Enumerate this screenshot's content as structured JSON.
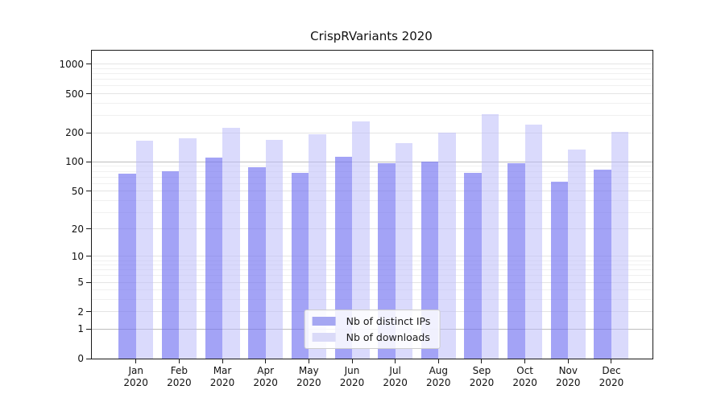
{
  "title": "CrispRVariants 2020",
  "legend": {
    "items": [
      {
        "label": "Nb of distinct IPs",
        "swatch_color": "#a5a7f2"
      },
      {
        "label": "Nb of downloads",
        "swatch_color": "#dadaf8"
      }
    ]
  },
  "chart_data": {
    "type": "bar",
    "title": "CrispRVariants 2020",
    "categories": [
      "Jan",
      "Feb",
      "Mar",
      "Apr",
      "May",
      "Jun",
      "Jul",
      "Aug",
      "Sep",
      "Oct",
      "Nov",
      "Dec"
    ],
    "x_tick_year": "2020",
    "series": [
      {
        "name": "Nb of distinct IPs",
        "color": "rgba(116,116,242,0.66)",
        "values": [
          76,
          81,
          112,
          88,
          77,
          113,
          97,
          100,
          77,
          98,
          62,
          83
        ]
      },
      {
        "name": "Nb of downloads",
        "color": "rgba(187,187,250,0.55)",
        "values": [
          165,
          176,
          223,
          170,
          192,
          260,
          155,
          200,
          311,
          240,
          134,
          205
        ]
      }
    ],
    "y_scale": "log10(v+1)",
    "y_ticks": [
      0,
      1,
      2,
      5,
      10,
      20,
      50,
      100,
      200,
      500,
      1000
    ],
    "y_minor_gridlines": [
      3,
      4,
      6,
      7,
      8,
      9,
      30,
      40,
      60,
      70,
      80,
      90,
      300,
      400,
      600,
      700,
      800,
      900
    ],
    "y_emphasized_gridlines": [
      1,
      100
    ],
    "ylim": [
      0,
      1380
    ],
    "xlabel": "",
    "ylabel": "",
    "grid": true,
    "legend_position": "lower center"
  },
  "grid_colors": {
    "minor": "#f0f0f0",
    "tick": "#e4e4e4",
    "emphasized": "#bdbdbd"
  }
}
